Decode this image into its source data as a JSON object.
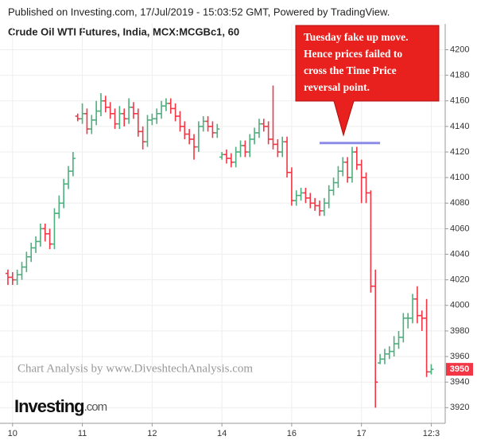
{
  "header": "Published on Investing.com, 17/Jul/2019 - 15:03:52 GMT, Powered by TradingView.",
  "chart_data": {
    "type": "ohlc",
    "title": "Crude Oil WTI Futures, India, MCX:MCGBc1, 60",
    "x": [
      0,
      1,
      2,
      3,
      4,
      5,
      6,
      7,
      8,
      9,
      10,
      11,
      12,
      13,
      14,
      15,
      16,
      17,
      18,
      19,
      20,
      21,
      22,
      23,
      24,
      25,
      26,
      27,
      28,
      29,
      30,
      31,
      32,
      33,
      34,
      35,
      36,
      37,
      38,
      39,
      40,
      41,
      42,
      43,
      44,
      45,
      46,
      47,
      48,
      49,
      50,
      51,
      52,
      53,
      54,
      55,
      56,
      57,
      58,
      59,
      60,
      61,
      62,
      63,
      64,
      65,
      66,
      67,
      68,
      69,
      70,
      71,
      72,
      73,
      74,
      75,
      76,
      77,
      78,
      79,
      80,
      81,
      82,
      83,
      84,
      85,
      86,
      87,
      88,
      89,
      90,
      91
    ],
    "open": [
      4025,
      4022,
      4020,
      4024,
      4030,
      4038,
      4045,
      4050,
      4060,
      4056,
      4048,
      4072,
      4080,
      4095,
      4105,
      4148,
      4146,
      4150,
      4138,
      4145,
      4152,
      4160,
      4155,
      4150,
      4142,
      4150,
      4146,
      4155,
      4150,
      4136,
      4128,
      4145,
      4146,
      4150,
      4156,
      4158,
      4154,
      4148,
      4140,
      4134,
      4130,
      4124,
      4140,
      4144,
      4140,
      4135,
      4116,
      4118,
      4115,
      4112,
      4120,
      4125,
      4120,
      4130,
      4135,
      4142,
      4140,
      4130,
      4126,
      4120,
      4128,
      4104,
      4082,
      4086,
      4088,
      4084,
      4080,
      4078,
      4074,
      4080,
      4090,
      4096,
      4105,
      4112,
      4100,
      4120,
      4110,
      4100,
      4088,
      4015,
      3955,
      3958,
      3962,
      3964,
      3970,
      3975,
      3990,
      3990,
      4005,
      3992,
      3990,
      3948
    ],
    "high": [
      4028,
      4026,
      4028,
      4034,
      4042,
      4049,
      4054,
      4064,
      4064,
      4060,
      4076,
      4086,
      4099,
      4109,
      4120,
      4150,
      4158,
      4154,
      4149,
      4160,
      4166,
      4164,
      4159,
      4154,
      4156,
      4154,
      4162,
      4159,
      4154,
      4140,
      4149,
      4150,
      4154,
      4160,
      4162,
      4162,
      4158,
      4152,
      4144,
      4138,
      4134,
      4144,
      4148,
      4148,
      4144,
      4142,
      4120,
      4122,
      4119,
      4124,
      4129,
      4129,
      4134,
      4139,
      4146,
      4146,
      4144,
      4172,
      4130,
      4132,
      4132,
      4108,
      4090,
      4092,
      4092,
      4088,
      4084,
      4082,
      4084,
      4094,
      4100,
      4109,
      4116,
      4116,
      4124,
      4124,
      4114,
      4104,
      4090,
      4028,
      3962,
      3966,
      3968,
      3976,
      3980,
      3994,
      3994,
      4009,
      4015,
      3996,
      4005,
      3954
    ],
    "low": [
      4016,
      4016,
      4016,
      4020,
      4026,
      4034,
      4041,
      4046,
      4050,
      4044,
      4044,
      4068,
      4076,
      4091,
      4101,
      4144,
      4142,
      4134,
      4134,
      4141,
      4148,
      4151,
      4146,
      4138,
      4138,
      4140,
      4142,
      4146,
      4132,
      4122,
      4124,
      4141,
      4142,
      4146,
      4152,
      4150,
      4144,
      4136,
      4130,
      4126,
      4114,
      4120,
      4136,
      4136,
      4131,
      4131,
      4114,
      4111,
      4108,
      4108,
      4116,
      4116,
      4116,
      4126,
      4131,
      4136,
      4126,
      4122,
      4116,
      4116,
      4100,
      4078,
      4078,
      4082,
      4080,
      4076,
      4074,
      4070,
      4070,
      4076,
      4086,
      4092,
      4101,
      4096,
      4096,
      4106,
      4080,
      4080,
      4010,
      3920,
      3954,
      3954,
      3958,
      3960,
      3966,
      3971,
      3982,
      3986,
      3986,
      3980,
      3944,
      3946
    ],
    "close": [
      4022,
      4020,
      4024,
      4030,
      4038,
      4045,
      4050,
      4060,
      4056,
      4048,
      4072,
      4080,
      4095,
      4105,
      4115,
      4146,
      4150,
      4138,
      4145,
      4152,
      4160,
      4155,
      4150,
      4142,
      4150,
      4146,
      4155,
      4150,
      4136,
      4128,
      4145,
      4146,
      4150,
      4156,
      4158,
      4154,
      4148,
      4140,
      4134,
      4130,
      4124,
      4140,
      4144,
      4140,
      4135,
      4138,
      4118,
      4115,
      4112,
      4120,
      4125,
      4120,
      4130,
      4135,
      4142,
      4140,
      4130,
      4126,
      4120,
      4128,
      4104,
      4082,
      4086,
      4088,
      4084,
      4080,
      4078,
      4074,
      4080,
      4090,
      4096,
      4105,
      4112,
      4100,
      4120,
      4110,
      4100,
      4088,
      4015,
      3940,
      3958,
      3962,
      3964,
      3970,
      3975,
      3990,
      3990,
      4005,
      3992,
      3990,
      3948,
      3950
    ],
    "up_color": "#4caf7d",
    "down_color": "#f23645",
    "xlim": [
      -1.7,
      94
    ],
    "xticks": [
      {
        "value": 1,
        "label": "10"
      },
      {
        "value": 16,
        "label": "11"
      },
      {
        "value": 31,
        "label": "12"
      },
      {
        "value": 46,
        "label": "14"
      },
      {
        "value": 61,
        "label": "16"
      },
      {
        "value": 76,
        "label": "17"
      },
      {
        "value": 91,
        "label": "12:3"
      }
    ],
    "ylim": [
      3909,
      4214
    ],
    "yticks": [
      3920,
      3940,
      3960,
      3980,
      4000,
      4020,
      4040,
      4060,
      4080,
      4100,
      4120,
      4140,
      4160,
      4180,
      4200
    ],
    "grid": true,
    "last_price": 3950,
    "level_line": {
      "value": 4127,
      "from": 67,
      "to": 80,
      "color": "#8c8ce6"
    },
    "callout": [
      "Tuesday fake up move.",
      "Hence prices failed to",
      "cross the Time Price",
      "reversal point."
    ],
    "watermark": "Chart Analysis by www.DiveshtechAnalysis.com"
  },
  "logo": {
    "brand": "Investing",
    "suffix": ".com"
  }
}
